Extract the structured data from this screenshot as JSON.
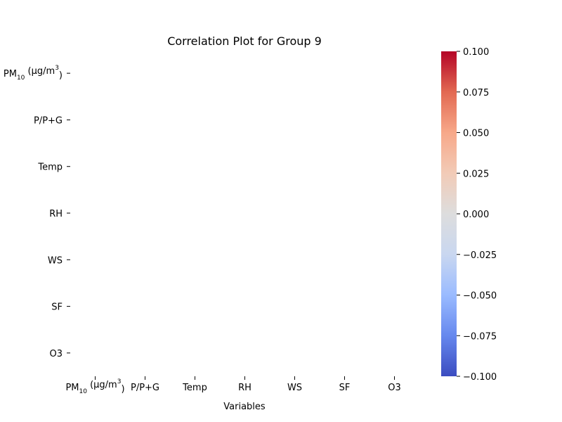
{
  "chart_data": {
    "type": "heatmap",
    "title": "Correlation Plot for Group 9",
    "xlabel": "Variables",
    "ylabel": "",
    "x_categories": [
      {
        "base": "PM",
        "sub": "10",
        "mid": " (µg/m",
        "sup": "3",
        "end": ")"
      },
      {
        "base": "P/P+G"
      },
      {
        "base": "Temp"
      },
      {
        "base": "RH"
      },
      {
        "base": "WS"
      },
      {
        "base": "SF"
      },
      {
        "base": "O3"
      }
    ],
    "y_categories": [
      {
        "base": "PM",
        "sub": "10",
        "mid": " (µg/m",
        "sup": "3",
        "end": ")"
      },
      {
        "base": "P/P+G"
      },
      {
        "base": "Temp"
      },
      {
        "base": "RH"
      },
      {
        "base": "WS"
      },
      {
        "base": "SF"
      },
      {
        "base": "O3"
      }
    ],
    "values": [
      [
        null,
        null,
        null,
        null,
        null,
        null,
        null
      ],
      [
        null,
        null,
        null,
        null,
        null,
        null,
        null
      ],
      [
        null,
        null,
        null,
        null,
        null,
        null,
        null
      ],
      [
        null,
        null,
        null,
        null,
        null,
        null,
        null
      ],
      [
        null,
        null,
        null,
        null,
        null,
        null,
        null
      ],
      [
        null,
        null,
        null,
        null,
        null,
        null,
        null
      ],
      [
        null,
        null,
        null,
        null,
        null,
        null,
        null
      ]
    ],
    "colorbar": {
      "colormap": "coolwarm",
      "range": [
        -0.1,
        0.1
      ],
      "ticks": [
        "0.100",
        "0.075",
        "0.050",
        "0.025",
        "0.000",
        "−0.025",
        "−0.050",
        "−0.075",
        "−0.100"
      ],
      "tick_values": [
        0.1,
        0.075,
        0.05,
        0.025,
        0.0,
        -0.025,
        -0.05,
        -0.075,
        -0.1
      ],
      "colors_bottom_to_top": [
        "#3b4cc0",
        "#6688ee",
        "#9abbff",
        "#c9d7f0",
        "#dddddd",
        "#f2cbb7",
        "#f7a889",
        "#e26952",
        "#b40426"
      ]
    }
  }
}
